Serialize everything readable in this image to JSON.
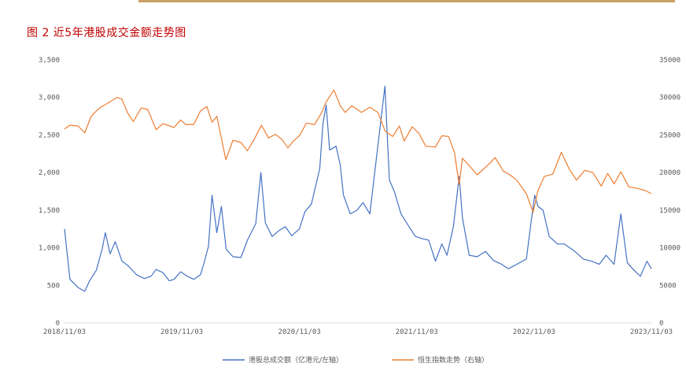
{
  "figure": {
    "title": "图 2 近5年港股成交金额走势图"
  },
  "chart_data": {
    "type": "line",
    "x_ticks": [
      "2018/11/03",
      "2019/11/03",
      "2020/11/03",
      "2021/11/03",
      "2022/11/03",
      "2023/11/03"
    ],
    "y_left": {
      "ticks": [
        "0",
        "500",
        "1,000",
        "1,500",
        "2,000",
        "2,500",
        "3,000",
        "3,500"
      ],
      "ylim": [
        0,
        3500
      ]
    },
    "y_right": {
      "ticks": [
        "0",
        "5000",
        "10000",
        "15000",
        "20000",
        "25000",
        "30000",
        "35000"
      ],
      "ylim": [
        0,
        35000
      ]
    },
    "xlim": [
      "2018/11/03",
      "2023/11/03"
    ],
    "grid": false,
    "legend_position": "bottom",
    "colors": {
      "turnover": "#4472c4",
      "hsi": "#ed7d31"
    },
    "series": [
      {
        "name": "港股总成交额（亿港元/左轴）",
        "axis": "left",
        "color": "#4472c4",
        "points": [
          [
            "2018/11/03",
            1250
          ],
          [
            "2018/11/20",
            580
          ],
          [
            "2018/12/15",
            470
          ],
          [
            "2019/01/05",
            420
          ],
          [
            "2019/01/20",
            560
          ],
          [
            "2019/02/10",
            700
          ],
          [
            "2019/02/28",
            980
          ],
          [
            "2019/03/10",
            1200
          ],
          [
            "2019/03/25",
            920
          ],
          [
            "2019/04/10",
            1080
          ],
          [
            "2019/05/01",
            820
          ],
          [
            "2019/05/20",
            760
          ],
          [
            "2019/06/15",
            640
          ],
          [
            "2019/07/10",
            590
          ],
          [
            "2019/07/30",
            620
          ],
          [
            "2019/08/15",
            710
          ],
          [
            "2019/09/05",
            670
          ],
          [
            "2019/09/25",
            560
          ],
          [
            "2019/10/10",
            580
          ],
          [
            "2019/10/30",
            680
          ],
          [
            "2019/11/20",
            620
          ],
          [
            "2019/12/10",
            580
          ],
          [
            "2019/12/31",
            640
          ],
          [
            "2020/01/10",
            780
          ],
          [
            "2020/01/25",
            1020
          ],
          [
            "2020/02/05",
            1700
          ],
          [
            "2020/02/20",
            1200
          ],
          [
            "2020/03/05",
            1550
          ],
          [
            "2020/03/20",
            980
          ],
          [
            "2020/04/10",
            880
          ],
          [
            "2020/05/05",
            870
          ],
          [
            "2020/05/25",
            1100
          ],
          [
            "2020/06/20",
            1320
          ],
          [
            "2020/07/06",
            2000
          ],
          [
            "2020/07/20",
            1330
          ],
          [
            "2020/08/10",
            1150
          ],
          [
            "2020/09/01",
            1230
          ],
          [
            "2020/09/20",
            1280
          ],
          [
            "2020/10/10",
            1160
          ],
          [
            "2020/11/03",
            1250
          ],
          [
            "2020/11/20",
            1480
          ],
          [
            "2020/12/10",
            1580
          ],
          [
            "2021/01/05",
            2050
          ],
          [
            "2021/01/15",
            2650
          ],
          [
            "2021/01/25",
            2900
          ],
          [
            "2021/02/05",
            2300
          ],
          [
            "2021/02/25",
            2350
          ],
          [
            "2021/03/10",
            2100
          ],
          [
            "2021/03/20",
            1700
          ],
          [
            "2021/04/10",
            1450
          ],
          [
            "2021/05/01",
            1500
          ],
          [
            "2021/05/20",
            1600
          ],
          [
            "2021/06/10",
            1450
          ],
          [
            "2021/07/27",
            3150
          ],
          [
            "2021/08/10",
            1900
          ],
          [
            "2021/08/25",
            1750
          ],
          [
            "2021/09/15",
            1450
          ],
          [
            "2021/10/10",
            1280
          ],
          [
            "2021/10/30",
            1150
          ],
          [
            "2021/11/20",
            1120
          ],
          [
            "2021/12/10",
            1100
          ],
          [
            "2021/12/31",
            820
          ],
          [
            "2022/01/20",
            1050
          ],
          [
            "2022/02/05",
            900
          ],
          [
            "2022/02/25",
            1280
          ],
          [
            "2022/03/15",
            1950
          ],
          [
            "2022/03/25",
            1400
          ],
          [
            "2022/04/15",
            900
          ],
          [
            "2022/05/10",
            880
          ],
          [
            "2022/06/05",
            950
          ],
          [
            "2022/06/30",
            830
          ],
          [
            "2022/07/25",
            780
          ],
          [
            "2022/08/15",
            720
          ],
          [
            "2022/09/10",
            780
          ],
          [
            "2022/10/10",
            850
          ],
          [
            "2022/10/25",
            1350
          ],
          [
            "2022/11/05",
            1700
          ],
          [
            "2022/11/15",
            1550
          ],
          [
            "2022/12/01",
            1500
          ],
          [
            "2022/12/20",
            1150
          ],
          [
            "2023/01/15",
            1050
          ],
          [
            "2023/02/05",
            1050
          ],
          [
            "2023/03/10",
            950
          ],
          [
            "2023/04/05",
            850
          ],
          [
            "2023/05/01",
            820
          ],
          [
            "2023/05/25",
            780
          ],
          [
            "2023/06/15",
            900
          ],
          [
            "2023/07/10",
            780
          ],
          [
            "2023/07/31",
            1450
          ],
          [
            "2023/08/20",
            800
          ],
          [
            "2023/09/10",
            700
          ],
          [
            "2023/09/30",
            620
          ],
          [
            "2023/10/20",
            820
          ],
          [
            "2023/11/03",
            720
          ]
        ]
      },
      {
        "name": "恒生指数走势（右轴）",
        "axis": "right",
        "color": "#ed7d31",
        "points": [
          [
            "2018/11/03",
            25800
          ],
          [
            "2018/11/20",
            26300
          ],
          [
            "2018/12/15",
            26200
          ],
          [
            "2019/01/05",
            25300
          ],
          [
            "2019/01/25",
            27500
          ],
          [
            "2019/02/20",
            28600
          ],
          [
            "2019/03/20",
            29300
          ],
          [
            "2019/04/15",
            30000
          ],
          [
            "2019/04/30",
            29800
          ],
          [
            "2019/05/20",
            27800
          ],
          [
            "2019/06/05",
            26800
          ],
          [
            "2019/06/30",
            28600
          ],
          [
            "2019/07/20",
            28400
          ],
          [
            "2019/08/15",
            25700
          ],
          [
            "2019/09/05",
            26500
          ],
          [
            "2019/09/20",
            26300
          ],
          [
            "2019/10/10",
            26000
          ],
          [
            "2019/10/30",
            27000
          ],
          [
            "2019/11/15",
            26400
          ],
          [
            "2019/12/10",
            26400
          ],
          [
            "2019/12/31",
            28200
          ],
          [
            "2020/01/20",
            28800
          ],
          [
            "2020/02/05",
            26700
          ],
          [
            "2020/02/20",
            27500
          ],
          [
            "2020/03/19",
            21700
          ],
          [
            "2020/04/10",
            24300
          ],
          [
            "2020/05/05",
            24000
          ],
          [
            "2020/05/25",
            22900
          ],
          [
            "2020/06/15",
            24400
          ],
          [
            "2020/07/08",
            26300
          ],
          [
            "2020/07/30",
            24600
          ],
          [
            "2020/08/20",
            25100
          ],
          [
            "2020/09/10",
            24400
          ],
          [
            "2020/09/28",
            23300
          ],
          [
            "2020/10/15",
            24200
          ],
          [
            "2020/11/03",
            24900
          ],
          [
            "2020/11/25",
            26600
          ],
          [
            "2020/12/20",
            26400
          ],
          [
            "2021/01/10",
            27900
          ],
          [
            "2021/01/25",
            29400
          ],
          [
            "2021/02/18",
            31000
          ],
          [
            "2021/03/10",
            28900
          ],
          [
            "2021/03/25",
            28000
          ],
          [
            "2021/04/15",
            28900
          ],
          [
            "2021/05/15",
            28000
          ],
          [
            "2021/06/10",
            28700
          ],
          [
            "2021/07/05",
            28000
          ],
          [
            "2021/07/28",
            25500
          ],
          [
            "2021/08/20",
            24800
          ],
          [
            "2021/09/10",
            26200
          ],
          [
            "2021/09/25",
            24200
          ],
          [
            "2021/10/20",
            26100
          ],
          [
            "2021/11/10",
            25200
          ],
          [
            "2021/12/01",
            23500
          ],
          [
            "2021/12/31",
            23400
          ],
          [
            "2022/01/20",
            24900
          ],
          [
            "2022/02/10",
            24800
          ],
          [
            "2022/02/28",
            22700
          ],
          [
            "2022/03/15",
            18400
          ],
          [
            "2022/03/25",
            21900
          ],
          [
            "2022/04/20",
            20700
          ],
          [
            "2022/05/10",
            19700
          ],
          [
            "2022/06/15",
            21100
          ],
          [
            "2022/07/05",
            22000
          ],
          [
            "2022/07/30",
            20200
          ],
          [
            "2022/08/20",
            19700
          ],
          [
            "2022/09/10",
            19000
          ],
          [
            "2022/10/10",
            17200
          ],
          [
            "2022/10/31",
            14700
          ],
          [
            "2022/11/15",
            17600
          ],
          [
            "2022/12/05",
            19500
          ],
          [
            "2022/12/31",
            19800
          ],
          [
            "2023/01/27",
            22700
          ],
          [
            "2023/02/20",
            20500
          ],
          [
            "2023/03/15",
            19000
          ],
          [
            "2023/04/10",
            20300
          ],
          [
            "2023/05/05",
            20000
          ],
          [
            "2023/05/31",
            18200
          ],
          [
            "2023/06/20",
            19900
          ],
          [
            "2023/07/10",
            18500
          ],
          [
            "2023/07/31",
            20100
          ],
          [
            "2023/08/25",
            18100
          ],
          [
            "2023/09/20",
            17900
          ],
          [
            "2023/10/15",
            17600
          ],
          [
            "2023/11/03",
            17200
          ]
        ]
      }
    ]
  }
}
